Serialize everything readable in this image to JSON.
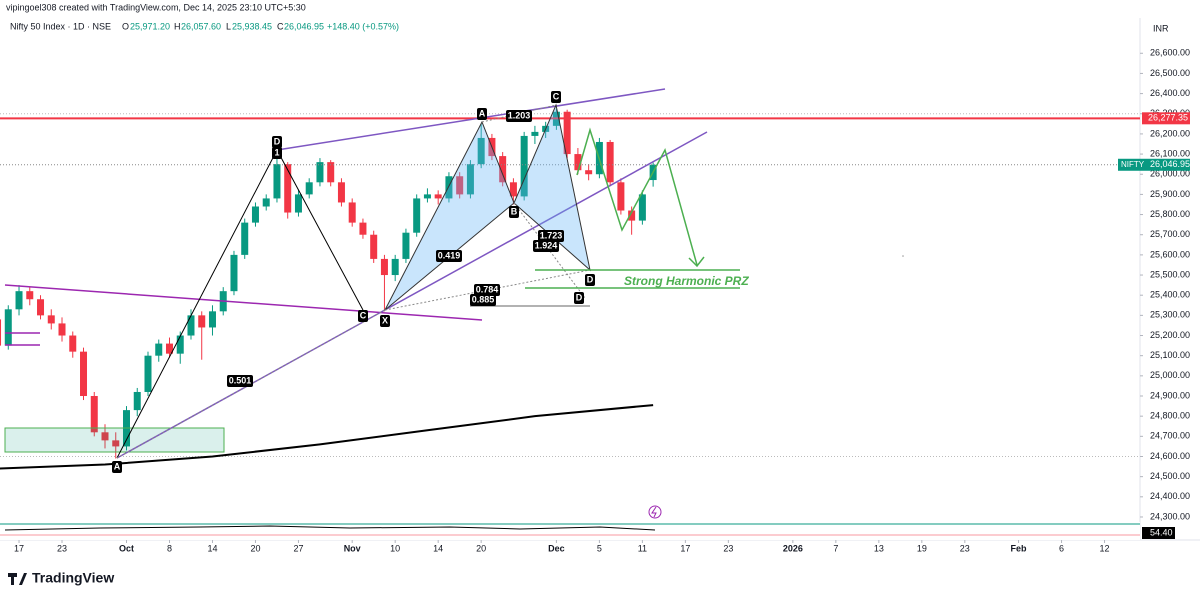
{
  "header": {
    "credit": "vipingoel308 created with TradingView.com, Dec 14, 2025 23:10 UTC+5:30",
    "symbol": "Nifty 50 Index · 1D · NSE",
    "o_key": "O",
    "open": "25,971.20",
    "h_key": "H",
    "high": "26,057.60",
    "l_key": "L",
    "low": "25,938.45",
    "c_key": "C",
    "close": "26,046.95",
    "change": "+148.40 (+0.57%)",
    "currency": "INR"
  },
  "chart_data": {
    "type": "candlestick",
    "x": [
      0,
      1,
      2,
      3,
      4,
      5,
      6,
      7,
      8,
      9,
      10,
      11,
      12,
      13,
      14,
      15,
      16,
      17,
      18,
      19,
      20,
      21,
      22,
      23,
      24,
      25,
      26,
      27,
      28,
      29,
      30,
      31,
      32,
      33,
      34,
      35,
      36,
      37,
      38,
      39,
      40,
      41,
      42,
      43,
      44,
      45,
      46,
      47,
      48,
      49,
      50,
      51,
      52,
      53,
      54,
      55,
      56,
      57,
      58,
      59,
      60,
      61
    ],
    "open": [
      25280,
      25150,
      25330,
      25420,
      25380,
      25300,
      25260,
      25200,
      25120,
      24900,
      24720,
      24680,
      24650,
      24830,
      24920,
      25100,
      25160,
      25110,
      25200,
      25300,
      25240,
      25320,
      25420,
      25600,
      25760,
      25840,
      25880,
      26050,
      25810,
      25900,
      25960,
      26060,
      25960,
      25860,
      25760,
      25700,
      25580,
      25500,
      25580,
      25710,
      25880,
      25900,
      25880,
      25990,
      25900,
      26050,
      26180,
      26090,
      25960,
      25890,
      26190,
      26210,
      26240,
      26310,
      26100,
      26020,
      26000,
      26160,
      25960,
      25820,
      25770,
      25971.2
    ],
    "high": [
      25300,
      25350,
      25450,
      25440,
      25400,
      25330,
      25290,
      25220,
      25140,
      24920,
      24760,
      24720,
      24850,
      24940,
      25120,
      25180,
      25190,
      25220,
      25330,
      25320,
      25350,
      25440,
      25620,
      25780,
      25860,
      25900,
      26100,
      26060,
      25920,
      25980,
      26080,
      26070,
      25980,
      25880,
      25780,
      25720,
      25600,
      25600,
      25730,
      25900,
      25930,
      25920,
      26010,
      26010,
      26070,
      26250,
      26200,
      26110,
      25980,
      26210,
      26240,
      26260,
      26325,
      26320,
      26130,
      26050,
      26180,
      26170,
      25980,
      25840,
      25920,
      26057.6
    ],
    "low": [
      25080,
      25130,
      25300,
      25350,
      25280,
      25230,
      25170,
      25090,
      24880,
      24700,
      24640,
      24590,
      24630,
      24800,
      24900,
      25070,
      25090,
      25060,
      25180,
      25080,
      25200,
      25300,
      25400,
      25580,
      25740,
      25820,
      25860,
      25780,
      25790,
      25880,
      25940,
      25940,
      25840,
      25740,
      25680,
      25560,
      25320,
      25470,
      25560,
      25690,
      25860,
      25850,
      25860,
      25880,
      25880,
      26030,
      26070,
      25940,
      25850,
      25870,
      26150,
      26180,
      26220,
      26080,
      26000,
      25970,
      25980,
      25940,
      25800,
      25700,
      25750,
      25938.45
    ],
    "close": [
      25150,
      25330,
      25420,
      25380,
      25300,
      25260,
      25200,
      25120,
      24900,
      24720,
      24680,
      24650,
      24830,
      24920,
      25100,
      25160,
      25110,
      25200,
      25300,
      25240,
      25320,
      25420,
      25600,
      25760,
      25840,
      25880,
      26050,
      25810,
      25900,
      25960,
      26060,
      25960,
      25860,
      25760,
      25700,
      25580,
      25500,
      25580,
      25710,
      25880,
      25900,
      25880,
      25990,
      25900,
      26050,
      26180,
      26090,
      25960,
      25890,
      26190,
      26210,
      26240,
      26310,
      26100,
      26020,
      26000,
      26160,
      25960,
      25820,
      25770,
      25900,
      26046.95
    ],
    "up_color": "#089981",
    "down_color": "#f23645",
    "ma": {
      "x": [
        0,
        10,
        20,
        30,
        40,
        50,
        61
      ],
      "values": [
        24540,
        24560,
        24600,
        24660,
        24730,
        24800,
        24855
      ],
      "color": "#000000"
    },
    "ylim": [
      24285,
      26765
    ],
    "yticks": [
      {
        "value": 26600,
        "label": "26,600.00"
      },
      {
        "value": 26500,
        "label": "26,500.00"
      },
      {
        "value": 26400,
        "label": "26,400.00"
      },
      {
        "value": 26300,
        "label": "26,300.00"
      },
      {
        "value": 26200,
        "label": "26,200.00"
      },
      {
        "value": 26100,
        "label": "26,100.00"
      },
      {
        "value": 26000,
        "label": "26,000.00"
      },
      {
        "value": 25900,
        "label": "25,900.00"
      },
      {
        "value": 25800,
        "label": "25,800.00"
      },
      {
        "value": 25700,
        "label": "25,700.00"
      },
      {
        "value": 25600,
        "label": "25,600.00"
      },
      {
        "value": 25500,
        "label": "25,500.00"
      },
      {
        "value": 25400,
        "label": "25,400.00"
      },
      {
        "value": 25300,
        "label": "25,300.00"
      },
      {
        "value": 25200,
        "label": "25,200.00"
      },
      {
        "value": 25100,
        "label": "25,100.00"
      },
      {
        "value": 25000,
        "label": "25,000.00"
      },
      {
        "value": 24900,
        "label": "24,900.00"
      },
      {
        "value": 24800,
        "label": "24,800.00"
      },
      {
        "value": 24700,
        "label": "24,700.00"
      },
      {
        "value": 24600,
        "label": "24,600.00"
      },
      {
        "value": 24500,
        "label": "24,500.00"
      },
      {
        "value": 24400,
        "label": "24,400.00"
      },
      {
        "value": 24300,
        "label": "24,300.00"
      }
    ],
    "xlim": [
      0.23,
      106.3
    ],
    "xticks": [
      {
        "value": 2,
        "label": "17"
      },
      {
        "value": 6,
        "label": "23"
      },
      {
        "value": 12,
        "label": "Oct"
      },
      {
        "value": 16,
        "label": "8"
      },
      {
        "value": 20,
        "label": "14"
      },
      {
        "value": 24,
        "label": "20"
      },
      {
        "value": 28,
        "label": "27"
      },
      {
        "value": 33,
        "label": "Nov"
      },
      {
        "value": 37,
        "label": "10"
      },
      {
        "value": 41,
        "label": "14"
      },
      {
        "value": 45,
        "label": "20"
      },
      {
        "value": 52,
        "label": "Dec"
      },
      {
        "value": 56,
        "label": "5"
      },
      {
        "value": 60,
        "label": "11"
      },
      {
        "value": 64,
        "label": "17"
      },
      {
        "value": 68,
        "label": "23"
      },
      {
        "value": 74,
        "label": "2026"
      },
      {
        "value": 78,
        "label": "7"
      },
      {
        "value": 82,
        "label": "13"
      },
      {
        "value": 86,
        "label": "19"
      },
      {
        "value": 90,
        "label": "23"
      },
      {
        "value": 95,
        "label": "Feb"
      },
      {
        "value": 99,
        "label": "6"
      },
      {
        "value": 103,
        "label": "12"
      }
    ],
    "grid": false,
    "hline": {
      "value": 26277.35,
      "label": "26,277.35",
      "color": "#f23645"
    },
    "last": {
      "name": "NIFTY",
      "value": 26046.95,
      "label": "26,046.95",
      "color": "#089981"
    },
    "pattern_points": [
      "D",
      "1",
      "A",
      "C",
      "X",
      "B",
      "A",
      "C",
      "D",
      "D"
    ],
    "ratios": [
      "0.501",
      "0.419",
      "0.784",
      "0.885",
      "1.203",
      "1.723",
      "1.924"
    ],
    "prz": "Strong Harmonic PRZ",
    "oscillator": "54.40"
  },
  "footer": {
    "brand": "TradingView"
  }
}
